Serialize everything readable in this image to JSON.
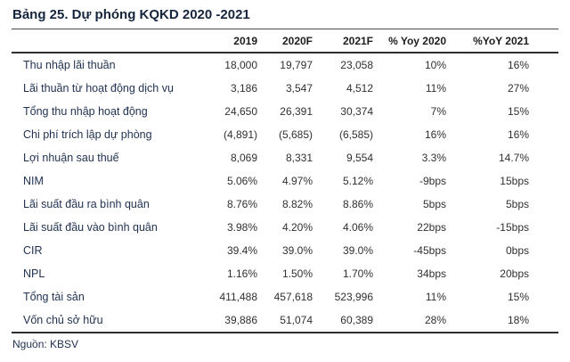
{
  "title": "Bảng 25. Dự phóng KQKD 2020 -2021",
  "source": "Nguồn: KBSV",
  "colors": {
    "heading_text": "#16253e",
    "label_text": "#1f3050",
    "number_text": "#303030",
    "rule_dark": "#2e2e2e"
  },
  "table": {
    "columns": [
      "",
      "2019",
      "2020F",
      "2021F",
      "% Yoy 2020",
      "%YoY 2021"
    ],
    "rows": [
      {
        "label": "Thu nhập lãi thuần",
        "values": [
          "18,000",
          "19,797",
          "23,058",
          "10%",
          "16%"
        ]
      },
      {
        "label": "Lãi thuần từ hoạt động dịch vụ",
        "values": [
          "3,186",
          "3,547",
          "4,512",
          "11%",
          "27%"
        ]
      },
      {
        "label": "Tổng thu nhập hoạt động",
        "values": [
          "24,650",
          "26,391",
          "30,374",
          "7%",
          "15%"
        ]
      },
      {
        "label": "Chi phí trích lập dự phòng",
        "values": [
          "(4,891)",
          "(5,685)",
          "(6,585)",
          "16%",
          "16%"
        ]
      },
      {
        "label": "Lợi nhuận sau thuế",
        "values": [
          "8,069",
          "8,331",
          "9,554",
          "3.3%",
          "14.7%"
        ]
      },
      {
        "label": "NIM",
        "values": [
          "5.06%",
          "4.97%",
          "5.12%",
          "-9bps",
          "15bps"
        ]
      },
      {
        "label": "Lãi suất đầu ra bình quân",
        "values": [
          "8.76%",
          "8.82%",
          "8.86%",
          "5bps",
          "5bps"
        ]
      },
      {
        "label": "Lãi suất đầu vào bình quân",
        "values": [
          "3.98%",
          "4.20%",
          "4.06%",
          "22bps",
          "-15bps"
        ]
      },
      {
        "label": "CIR",
        "values": [
          "39.4%",
          "39.0%",
          "39.0%",
          "-45bps",
          "0bps"
        ]
      },
      {
        "label": "NPL",
        "values": [
          "1.16%",
          "1.50%",
          "1.70%",
          "34bps",
          "20bps"
        ]
      },
      {
        "label": "Tổng tài sản",
        "values": [
          "411,488",
          "457,618",
          "523,996",
          "11%",
          "15%"
        ]
      },
      {
        "label": "Vốn chủ sở hữu",
        "values": [
          "39,886",
          "51,074",
          "60,389",
          "28%",
          "18%"
        ]
      }
    ]
  }
}
